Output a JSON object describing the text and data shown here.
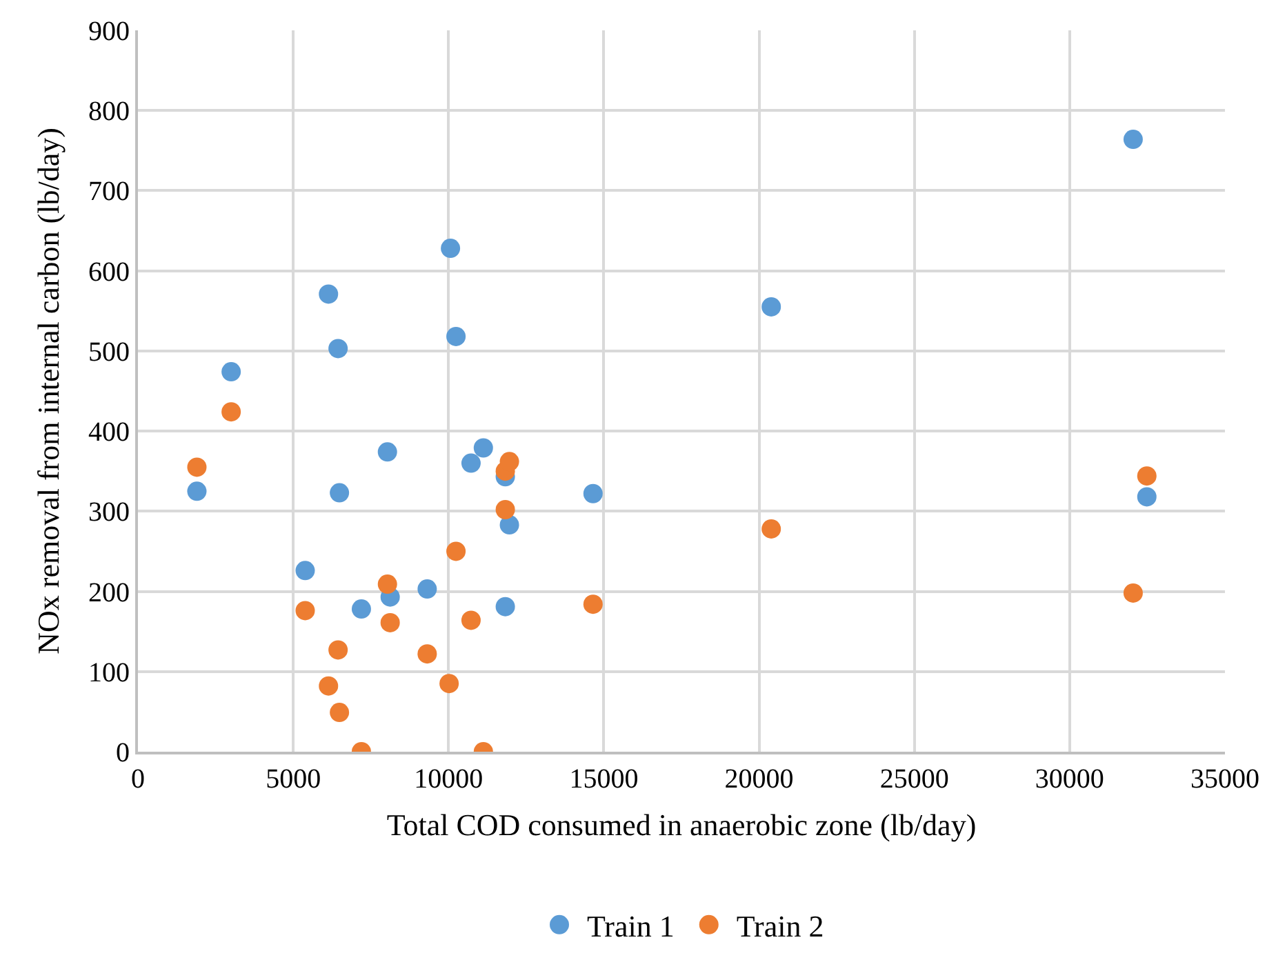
{
  "chart_data": {
    "type": "scatter",
    "xlabel": "Total COD consumed in anaerobic zone (lb/day)",
    "ylabel": "NOx removal from internal carbon (lb/day)",
    "xlim": [
      0,
      35000
    ],
    "xticks": [
      0,
      5000,
      10000,
      15000,
      20000,
      25000,
      30000,
      35000
    ],
    "ylim": [
      0,
      900
    ],
    "yticks": [
      0,
      100,
      200,
      300,
      400,
      500,
      600,
      700,
      800,
      900
    ],
    "grid": true,
    "legend": "bottom",
    "marker": "circle",
    "series": [
      {
        "name": "Train 1",
        "color": "#5b9bd5",
        "x": [
          6135,
          10240,
          6444,
          3001,
          8033,
          11122,
          10725,
          11828,
          1898,
          6488,
          11961,
          5385,
          9313,
          8121,
          7194,
          11828,
          10063,
          14653,
          20391,
          32044,
          32485
        ],
        "values": [
          571,
          518,
          503,
          474,
          374,
          379,
          360,
          343,
          325,
          323,
          283,
          226,
          203,
          193,
          178,
          181,
          628,
          322,
          555,
          764,
          318
        ]
      },
      {
        "name": "Train 2",
        "color": "#ed7d31",
        "x": [
          1898,
          3001,
          5385,
          6135,
          6444,
          6488,
          7194,
          8033,
          8121,
          9313,
          10019,
          10240,
          10725,
          11122,
          11828,
          11828,
          11961,
          14653,
          20391,
          32485,
          32044
        ],
        "values": [
          355,
          424,
          176,
          82,
          127,
          49,
          0,
          209,
          161,
          122,
          85,
          250,
          164,
          0,
          302,
          350,
          362,
          184,
          278,
          344,
          198
        ]
      }
    ]
  }
}
